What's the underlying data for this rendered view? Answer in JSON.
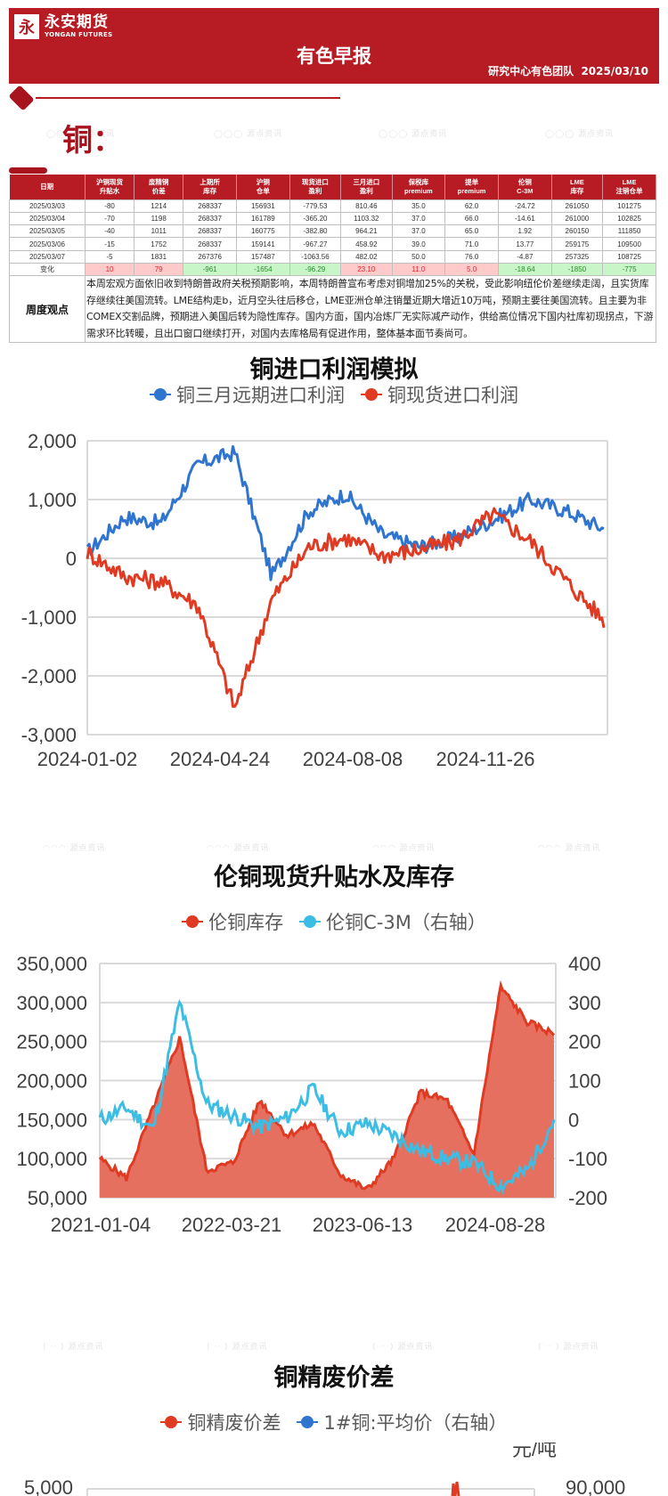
{
  "header": {
    "logo_mark": "永",
    "logo_cn": "永安期货",
    "logo_en": "YONGAN FUTURES",
    "title": "有色早报",
    "team": "研究中心有色团队",
    "date": "2025/03/10"
  },
  "section": {
    "title": "铜："
  },
  "table": {
    "columns": [
      "日期",
      "沪铜现货\n升贴水",
      "废精铜\n价差",
      "上期所\n库存",
      "沪铜\n仓单",
      "现货进口\n盈利",
      "三月进口\n盈利",
      "保税库\npremium",
      "提单\npremium",
      "伦铜\nC-3M",
      "LME\n库存",
      "LME\n注销仓单"
    ],
    "rows": [
      [
        "2025/03/03",
        "-80",
        "1214",
        "268337",
        "156931",
        "-779.53",
        "810.46",
        "35.0",
        "62.0",
        "-24.72",
        "261050",
        "101275"
      ],
      [
        "2025/03/04",
        "-70",
        "1198",
        "268337",
        "161789",
        "-365.20",
        "1103.32",
        "37.0",
        "66.0",
        "-14.61",
        "261000",
        "102825"
      ],
      [
        "2025/03/05",
        "-40",
        "1011",
        "268337",
        "160775",
        "-382.80",
        "964.21",
        "37.0",
        "65.0",
        "1.92",
        "260150",
        "111850"
      ],
      [
        "2025/03/06",
        "-15",
        "1752",
        "268337",
        "159141",
        "-967.27",
        "458.92",
        "39.0",
        "71.0",
        "13.77",
        "259175",
        "109500"
      ],
      [
        "2025/03/07",
        "-5",
        "1831",
        "267376",
        "157487",
        "-1063.56",
        "482.02",
        "50.0",
        "76.0",
        "-4.87",
        "257325",
        "108725"
      ]
    ],
    "change_label": "变化",
    "change": [
      "10",
      "79",
      "-961",
      "-1654",
      "-96.29",
      "23.10",
      "11.0",
      "5.0",
      "-18.64",
      "-1850",
      "-775"
    ],
    "change_direction": [
      "up",
      "up",
      "down",
      "down",
      "down",
      "up",
      "up",
      "up",
      "down",
      "down",
      "down"
    ],
    "view_label": "周度观点",
    "view_text": "本周宏观方面依旧收到特朗普政府关税预期影响，本周特朗普宣布考虑对铜增加25%的关税，受此影响纽伦价差继续走阔，且实货库存继续往美国流转。LME结构走b，近月空头往后移仓，LME亚洲仓单注销量近期大增近10万吨，预期主要往美国流转。且主要为非COMEX交割品牌，预期进入美国后转为隐性库存。国内方面，国内冶炼厂无实际减产动作，供给高位情况下国内社库初现拐点，下游需求环比转暖，且出口窗口继续打开，对国内去库格局有促进作用，整体基本面节奏尚可。"
  },
  "colors": {
    "brand_red": "#b71c25",
    "series_blue": "#2f75cf",
    "series_red": "#e03a22",
    "series_cyan": "#3cbde4",
    "area_fill": "#e57060"
  },
  "chart_data": [
    {
      "type": "line",
      "title": "铜进口利润模拟",
      "legend": [
        "铜三月远期进口利润",
        "铜现货进口利润"
      ],
      "x_ticks": [
        "2024-01-02",
        "2024-04-24",
        "2024-08-08",
        "2024-11-26"
      ],
      "y_ticks": [
        "2,000",
        "1,000",
        "0",
        "-1,000",
        "-2,000",
        "-3,000"
      ],
      "ylim": [
        -3000,
        2000
      ],
      "x": [
        "2024-01",
        "2024-02",
        "2024-03",
        "2024-04",
        "2024-05",
        "2024-06",
        "2024-07",
        "2024-08",
        "2024-09",
        "2024-10",
        "2024-11",
        "2024-12",
        "2025-01",
        "2025-02",
        "2025-03"
      ],
      "series": [
        {
          "name": "铜三月远期进口利润",
          "color": "#2f75cf",
          "values": [
            100,
            700,
            600,
            1600,
            1800,
            -300,
            800,
            1100,
            400,
            200,
            350,
            650,
            1000,
            800,
            500
          ]
        },
        {
          "name": "铜现货进口利润",
          "color": "#e03a22",
          "values": [
            100,
            -300,
            -400,
            -800,
            -2550,
            -700,
            200,
            350,
            50,
            150,
            300,
            750,
            300,
            -400,
            -1050
          ]
        }
      ]
    },
    {
      "type": "area+line",
      "title": "伦铜现货升贴水及库存",
      "legend": [
        "伦铜库存",
        "伦铜C-3M（右轴）"
      ],
      "x_ticks": [
        "2021-01-04",
        "2022-03-21",
        "2023-06-13",
        "2024-08-28"
      ],
      "y_ticks_left": [
        "350,000",
        "300,000",
        "250,000",
        "200,000",
        "150,000",
        "100,000",
        "50,000"
      ],
      "y_ticks_right": [
        "400",
        "300",
        "200",
        "100",
        "0",
        "-100",
        "-200"
      ],
      "ylim_left": [
        50000,
        350000
      ],
      "ylim_right": [
        -200,
        400
      ],
      "x": [
        "2021-01",
        "2021-04",
        "2021-07",
        "2021-10",
        "2022-01",
        "2022-04",
        "2022-07",
        "2022-10",
        "2023-01",
        "2023-04",
        "2023-07",
        "2023-10",
        "2024-01",
        "2024-04",
        "2024-07",
        "2024-10",
        "2025-01",
        "2025-03"
      ],
      "series": [
        {
          "name": "伦铜库存",
          "color": "#e03a22",
          "axis": "left",
          "values": [
            100000,
            75000,
            165000,
            255000,
            85000,
            95000,
            175000,
            130000,
            145000,
            80000,
            60000,
            100000,
            185000,
            175000,
            105000,
            320000,
            275000,
            260000
          ]
        },
        {
          "name": "伦铜C-3M",
          "color": "#3cbde4",
          "axis": "right",
          "values": [
            0,
            30,
            -25,
            300,
            40,
            10,
            -20,
            5,
            80,
            -30,
            -10,
            -40,
            -80,
            -100,
            -110,
            -170,
            -130,
            0
          ]
        }
      ]
    },
    {
      "type": "line",
      "title": "铜精废价差",
      "legend": [
        "铜精废价差",
        "1#铜:平均价（右轴）"
      ],
      "unit_right": "元/吨",
      "y_ticks_left": [
        "5,000"
      ],
      "y_ticks_right": [
        "90,000"
      ]
    }
  ]
}
